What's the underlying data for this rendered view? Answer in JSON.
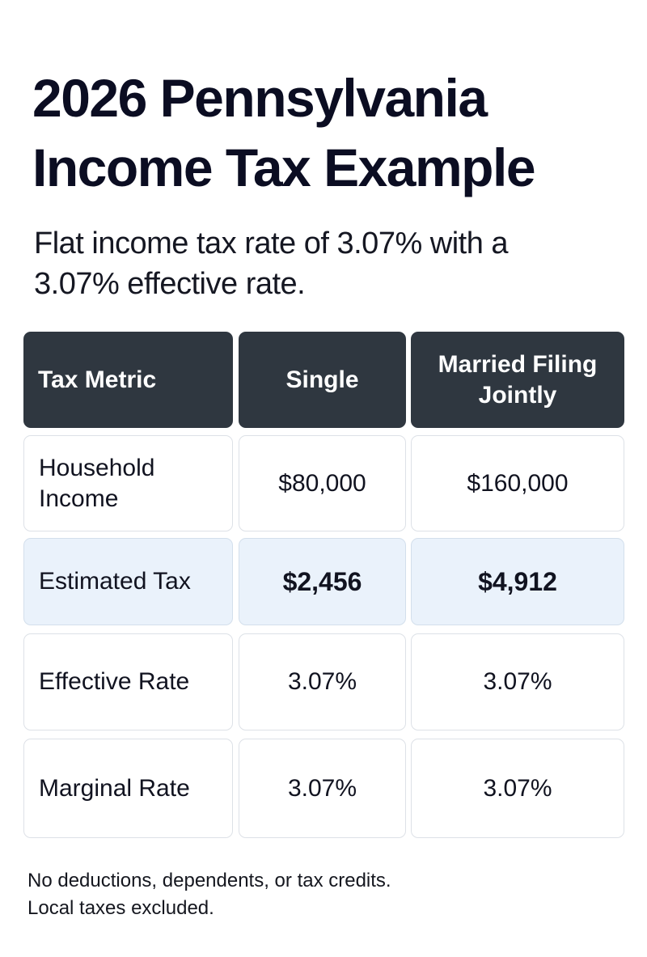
{
  "title": {
    "line1": "2026 Pennsylvania",
    "line2": "Income Tax Example"
  },
  "subtitle": {
    "line1": "Flat income tax rate of 3.07% with a",
    "line2": "3.07% effective rate."
  },
  "table": {
    "headers": [
      "Tax Metric",
      "Single",
      "Married Filing Jointly"
    ],
    "rows": [
      {
        "metric": "Household Income",
        "single": "$80,000",
        "married": "$160,000",
        "highlight": false
      },
      {
        "metric": "Estimated Tax",
        "single": "$2,456",
        "married": "$4,912",
        "highlight": true
      },
      {
        "metric": "Effective Rate",
        "single": "3.07%",
        "married": "3.07%",
        "highlight": false
      },
      {
        "metric": "Marginal Rate",
        "single": "3.07%",
        "married": "3.07%",
        "highlight": false
      }
    ]
  },
  "footnote": {
    "line1": "No deductions, dependents, or tax credits.",
    "line2": "Local taxes excluded."
  },
  "colors": {
    "header_bg": "#2f3740",
    "highlight_bg": "#eaf2fb",
    "border": "#dde1e7"
  }
}
